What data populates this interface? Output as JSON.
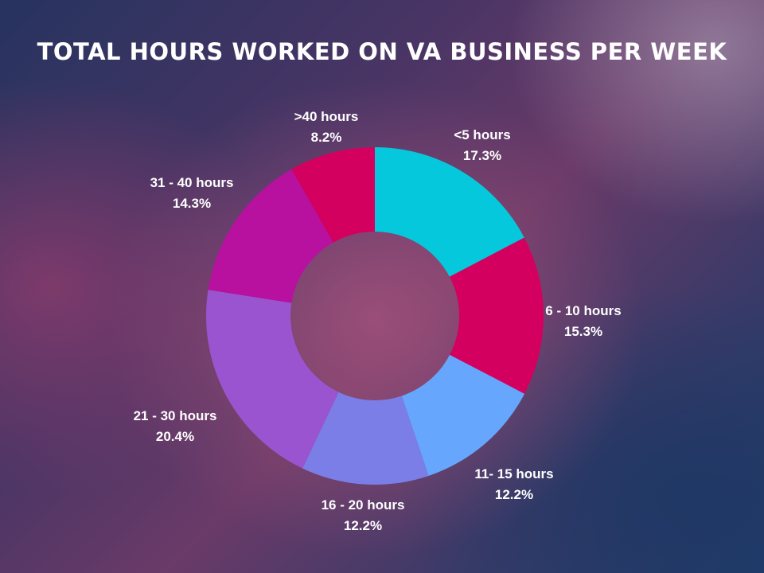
{
  "chart_data": {
    "type": "pie",
    "title": "TOTAL HOURS WORKED ON VA BUSINESS PER WEEK",
    "categories": [
      "<5 hours",
      "6 - 10 hours",
      "11- 15 hours",
      "16 - 20 hours",
      "21 - 30 hours",
      "31 - 40 hours",
      ">40 hours"
    ],
    "values": [
      17.3,
      15.3,
      12.2,
      12.2,
      20.4,
      14.3,
      8.2
    ],
    "value_labels": [
      "17.3%",
      "15.3%",
      "12.2%",
      "12.2%",
      "20.4%",
      "14.3%",
      "8.2%"
    ],
    "colors": [
      "#05c8dc",
      "#d4005f",
      "#66a6fd",
      "#7a7ee6",
      "#9a54cf",
      "#b8109f",
      "#d3005f"
    ],
    "donut": true,
    "legend": "none"
  }
}
